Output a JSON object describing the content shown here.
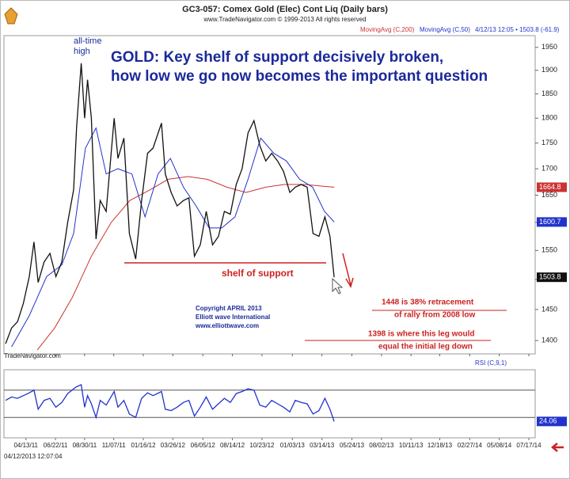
{
  "header": {
    "title": "GC3-057:  Comex Gold (Elec) Cont Liq   (Daily bars)",
    "copyright": "www.TradeNavigator.com © 1999-2013 All rights reserved",
    "source": "TradeNavigator.com",
    "timestamp": "04/12/2013 12:07:04"
  },
  "annotations": {
    "peak": [
      "all-time",
      "high"
    ],
    "headline": [
      "GOLD: Key shelf of support decisively broken,",
      "how low we go now becomes the important question"
    ],
    "shelf": "shelf of support",
    "credit": [
      "Copyright APRIL 2013",
      "Elliott wave International",
      "www.elliottwave.com"
    ],
    "retracement": [
      "1448 is 38% retracement",
      "of rally from 2008 low"
    ],
    "leg": [
      "1398 is where this leg would",
      "equal the initial leg down"
    ]
  },
  "chart_data": [
    {
      "type": "line",
      "log_scale": true,
      "quote": "4/12/13 12:05 • 1503.8 (-61.9)",
      "xlim": [
        "02/20/11",
        "08/01/14"
      ],
      "ylim": [
        1379,
        1976
      ],
      "yticks": [
        1400,
        1450,
        1500,
        1550,
        1600,
        1650,
        1700,
        1750,
        1800,
        1850,
        1900,
        1950
      ],
      "xticks": [
        "04/13/11",
        "06/22/11",
        "08/30/11",
        "11/07/11",
        "01/16/12",
        "03/26/12",
        "06/05/12",
        "08/14/12",
        "10/23/12",
        "01/03/13",
        "03/14/13",
        "05/24/13",
        "08/02/13",
        "10/11/13",
        "12/18/13",
        "02/27/14",
        "05/08/14",
        "07/17/14"
      ],
      "series": [
        {
          "name": "MovingAvg (C,200)",
          "color": "#cc3333",
          "x": [
            "05/10/11",
            "06/20/11",
            "08/01/11",
            "09/15/11",
            "11/01/11",
            "12/15/11",
            "02/01/12",
            "03/15/12",
            "05/01/12",
            "06/15/12",
            "08/01/12",
            "09/15/12",
            "11/01/12",
            "12/15/12",
            "02/01/13",
            "04/12/13"
          ],
          "values": [
            1385,
            1420,
            1470,
            1540,
            1600,
            1640,
            1660,
            1680,
            1685,
            1680,
            1665,
            1655,
            1665,
            1670,
            1670,
            1664.8
          ]
        },
        {
          "name": "MovingAvg (C,50)",
          "color": "#2233cc",
          "x": [
            "03/10/11",
            "04/21/11",
            "06/01/11",
            "07/07/11",
            "08/04/11",
            "09/01/11",
            "09/26/11",
            "10/20/11",
            "11/17/11",
            "12/20/11",
            "01/20/12",
            "02/20/12",
            "03/20/12",
            "04/20/12",
            "05/20/12",
            "06/20/12",
            "07/20/12",
            "08/20/12",
            "09/20/12",
            "10/20/12",
            "11/20/12",
            "12/20/12",
            "01/20/13",
            "02/20/13",
            "03/20/13",
            "04/12/13"
          ],
          "values": [
            1390,
            1440,
            1505,
            1525,
            1580,
            1740,
            1780,
            1690,
            1700,
            1690,
            1610,
            1690,
            1720,
            1665,
            1630,
            1590,
            1590,
            1610,
            1680,
            1760,
            1730,
            1715,
            1680,
            1665,
            1620,
            1600.7
          ]
        },
        {
          "color": "#111111",
          "x": [
            "02/24/11",
            "03/10/11",
            "03/24/11",
            "04/07/11",
            "04/21/11",
            "05/02/11",
            "05/12/11",
            "05/26/11",
            "06/09/11",
            "06/23/11",
            "07/07/11",
            "07/21/11",
            "08/04/11",
            "08/11/11",
            "08/22/11",
            "08/30/11",
            "09/06/11",
            "09/15/11",
            "09/26/11",
            "10/06/11",
            "10/20/11",
            "11/08/11",
            "11/17/11",
            "12/01/11",
            "12/14/11",
            "12/29/11",
            "01/12/12",
            "01/26/12",
            "02/08/12",
            "02/28/12",
            "03/08/12",
            "03/22/12",
            "04/05/12",
            "04/20/12",
            "05/03/12",
            "05/16/12",
            "05/30/12",
            "06/13/12",
            "06/28/12",
            "07/12/12",
            "07/26/12",
            "08/09/12",
            "08/23/12",
            "09/06/12",
            "09/20/12",
            "10/04/12",
            "10/18/12",
            "11/01/12",
            "11/15/12",
            "11/29/12",
            "12/13/12",
            "12/28/12",
            "01/10/13",
            "01/24/13",
            "02/07/13",
            "02/21/13",
            "03/07/13",
            "03/21/13",
            "04/02/13",
            "04/12/13"
          ],
          "values": [
            1395,
            1420,
            1430,
            1460,
            1505,
            1565,
            1495,
            1530,
            1545,
            1505,
            1530,
            1600,
            1660,
            1780,
            1915,
            1800,
            1880,
            1800,
            1570,
            1640,
            1620,
            1800,
            1720,
            1760,
            1580,
            1535,
            1640,
            1730,
            1740,
            1790,
            1690,
            1655,
            1630,
            1640,
            1645,
            1540,
            1560,
            1620,
            1560,
            1575,
            1620,
            1615,
            1670,
            1700,
            1770,
            1795,
            1745,
            1715,
            1730,
            1715,
            1695,
            1655,
            1665,
            1670,
            1665,
            1580,
            1575,
            1610,
            1575,
            1503.8
          ]
        }
      ]
    },
    {
      "type": "line",
      "title": "RSI (C,9,1)",
      "xlim": [
        "02/20/11",
        "08/01/14"
      ],
      "ylim": [
        0,
        100
      ],
      "reference_lines": [
        30,
        70
      ],
      "series": [
        {
          "color": "#2233cc",
          "x": [
            "02/24/11",
            "03/10/11",
            "03/24/11",
            "04/07/11",
            "04/21/11",
            "05/02/11",
            "05/12/11",
            "05/26/11",
            "06/09/11",
            "06/23/11",
            "07/07/11",
            "07/21/11",
            "08/04/11",
            "08/11/11",
            "08/22/11",
            "08/30/11",
            "09/06/11",
            "09/15/11",
            "09/26/11",
            "10/06/11",
            "10/20/11",
            "11/08/11",
            "11/17/11",
            "12/01/11",
            "12/14/11",
            "12/29/11",
            "01/12/12",
            "01/26/12",
            "02/08/12",
            "02/28/12",
            "03/08/12",
            "03/22/12",
            "04/05/12",
            "04/20/12",
            "05/03/12",
            "05/16/12",
            "05/30/12",
            "06/13/12",
            "06/28/12",
            "07/12/12",
            "07/26/12",
            "08/09/12",
            "08/23/12",
            "09/06/12",
            "09/20/12",
            "10/04/12",
            "10/18/12",
            "11/01/12",
            "11/15/12",
            "11/29/12",
            "12/13/12",
            "12/28/12",
            "01/10/13",
            "01/24/13",
            "02/07/13",
            "02/21/13",
            "03/07/13",
            "03/21/13",
            "04/02/13",
            "04/12/13"
          ],
          "values": [
            55,
            60,
            58,
            62,
            66,
            70,
            42,
            55,
            58,
            45,
            52,
            65,
            72,
            75,
            78,
            45,
            62,
            50,
            30,
            55,
            48,
            68,
            45,
            55,
            35,
            30,
            58,
            66,
            62,
            68,
            42,
            40,
            45,
            52,
            55,
            32,
            45,
            60,
            42,
            50,
            58,
            52,
            65,
            68,
            72,
            70,
            48,
            45,
            55,
            50,
            45,
            38,
            55,
            52,
            50,
            35,
            40,
            58,
            42,
            24.06
          ]
        }
      ]
    }
  ]
}
